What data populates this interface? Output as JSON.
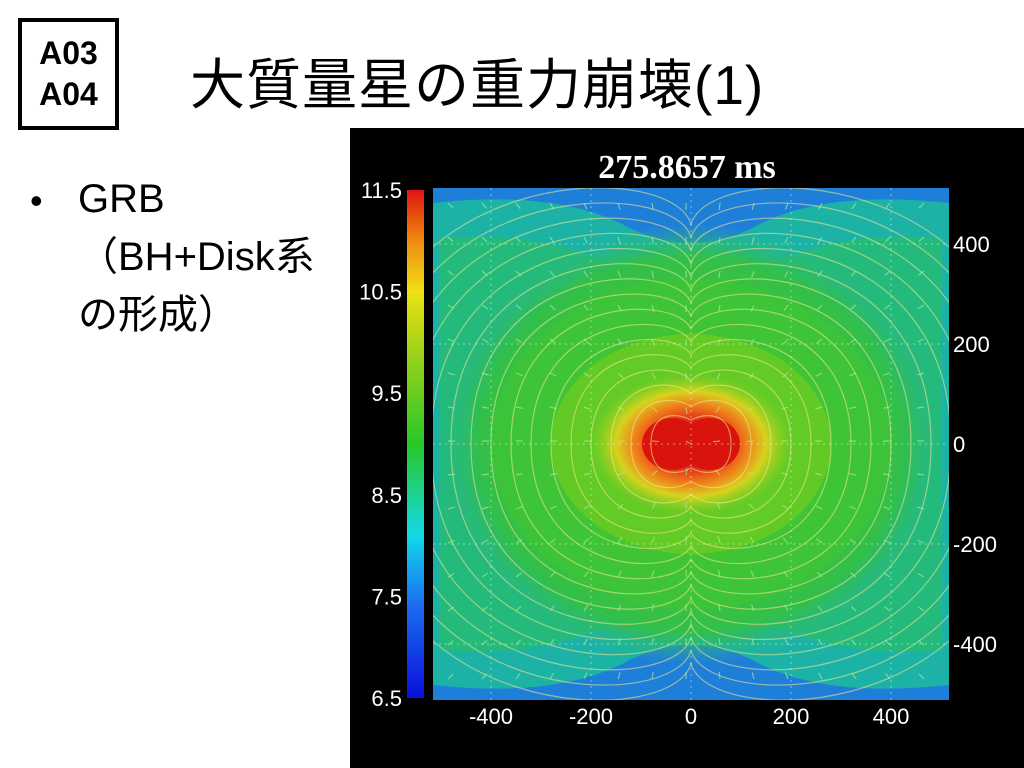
{
  "badge": {
    "line1": "A03",
    "line2": "A04"
  },
  "title": "大質量星の重力崩壊(1)",
  "bullet": {
    "line1": "GRB",
    "line2": "（BH+Disk系",
    "line3": "の形成）"
  },
  "figure": {
    "timestamp": "275.8657 ms",
    "colorbar": {
      "ticks": [
        "11.5",
        "10.5",
        "9.5",
        "8.5",
        "7.5",
        "6.5"
      ],
      "values": [
        11.5,
        10.5,
        9.5,
        8.5,
        7.5,
        6.5
      ],
      "min": 6.5,
      "max": 11.5
    },
    "x_axis": {
      "ticks": [
        "-400",
        "-200",
        "0",
        "200",
        "400"
      ],
      "values": [
        -400,
        -200,
        0,
        200,
        400
      ]
    },
    "y_axis": {
      "ticks": [
        "400",
        "200",
        "0",
        "-200",
        "-400"
      ],
      "values": [
        400,
        200,
        0,
        -200,
        -400
      ]
    },
    "colors": {
      "background": "#000000",
      "core": "#d81a0e",
      "field_green": "#3cc43a",
      "outer_teal": "#1fb59a",
      "corner_blue": "#1e78d6"
    }
  }
}
